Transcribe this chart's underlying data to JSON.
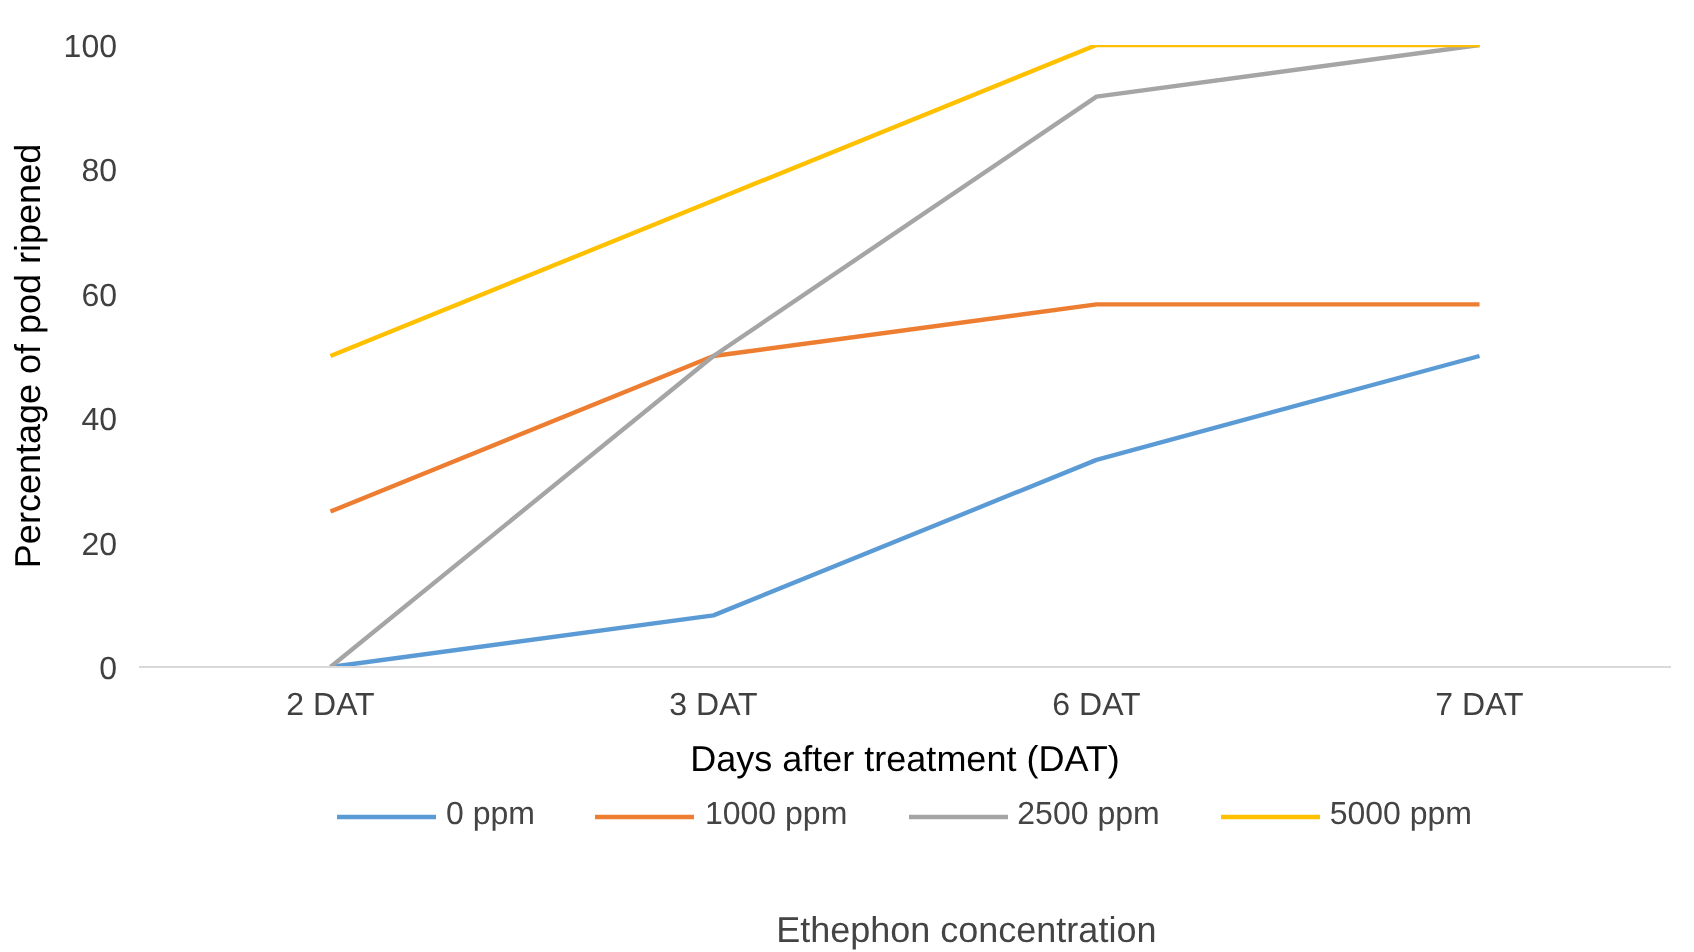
{
  "chart_data": {
    "type": "line",
    "xlabel": "Days after treatment (DAT)",
    "ylabel": "Percentage of pod ripened",
    "legend_title": "Ethephon concentration",
    "categories": [
      "2 DAT",
      "3 DAT",
      "6 DAT",
      "7 DAT"
    ],
    "series": [
      {
        "name": "0 ppm",
        "color": "#5b9bd5",
        "values": [
          0,
          8.3,
          33.3,
          50
        ]
      },
      {
        "name": "1000 ppm",
        "color": "#ed7d31",
        "values": [
          25,
          50,
          58.3,
          58.3
        ]
      },
      {
        "name": "2500 ppm",
        "color": "#a5a5a5",
        "values": [
          0,
          50,
          91.7,
          100
        ]
      },
      {
        "name": "5000 ppm",
        "color": "#ffc000",
        "values": [
          50,
          75,
          100,
          100
        ]
      }
    ],
    "ylim": [
      0,
      100
    ],
    "yticks": [
      0,
      20,
      40,
      60,
      80,
      100
    ],
    "grid": false,
    "legend": "bottom",
    "marker": "none",
    "line_style": "solid"
  }
}
